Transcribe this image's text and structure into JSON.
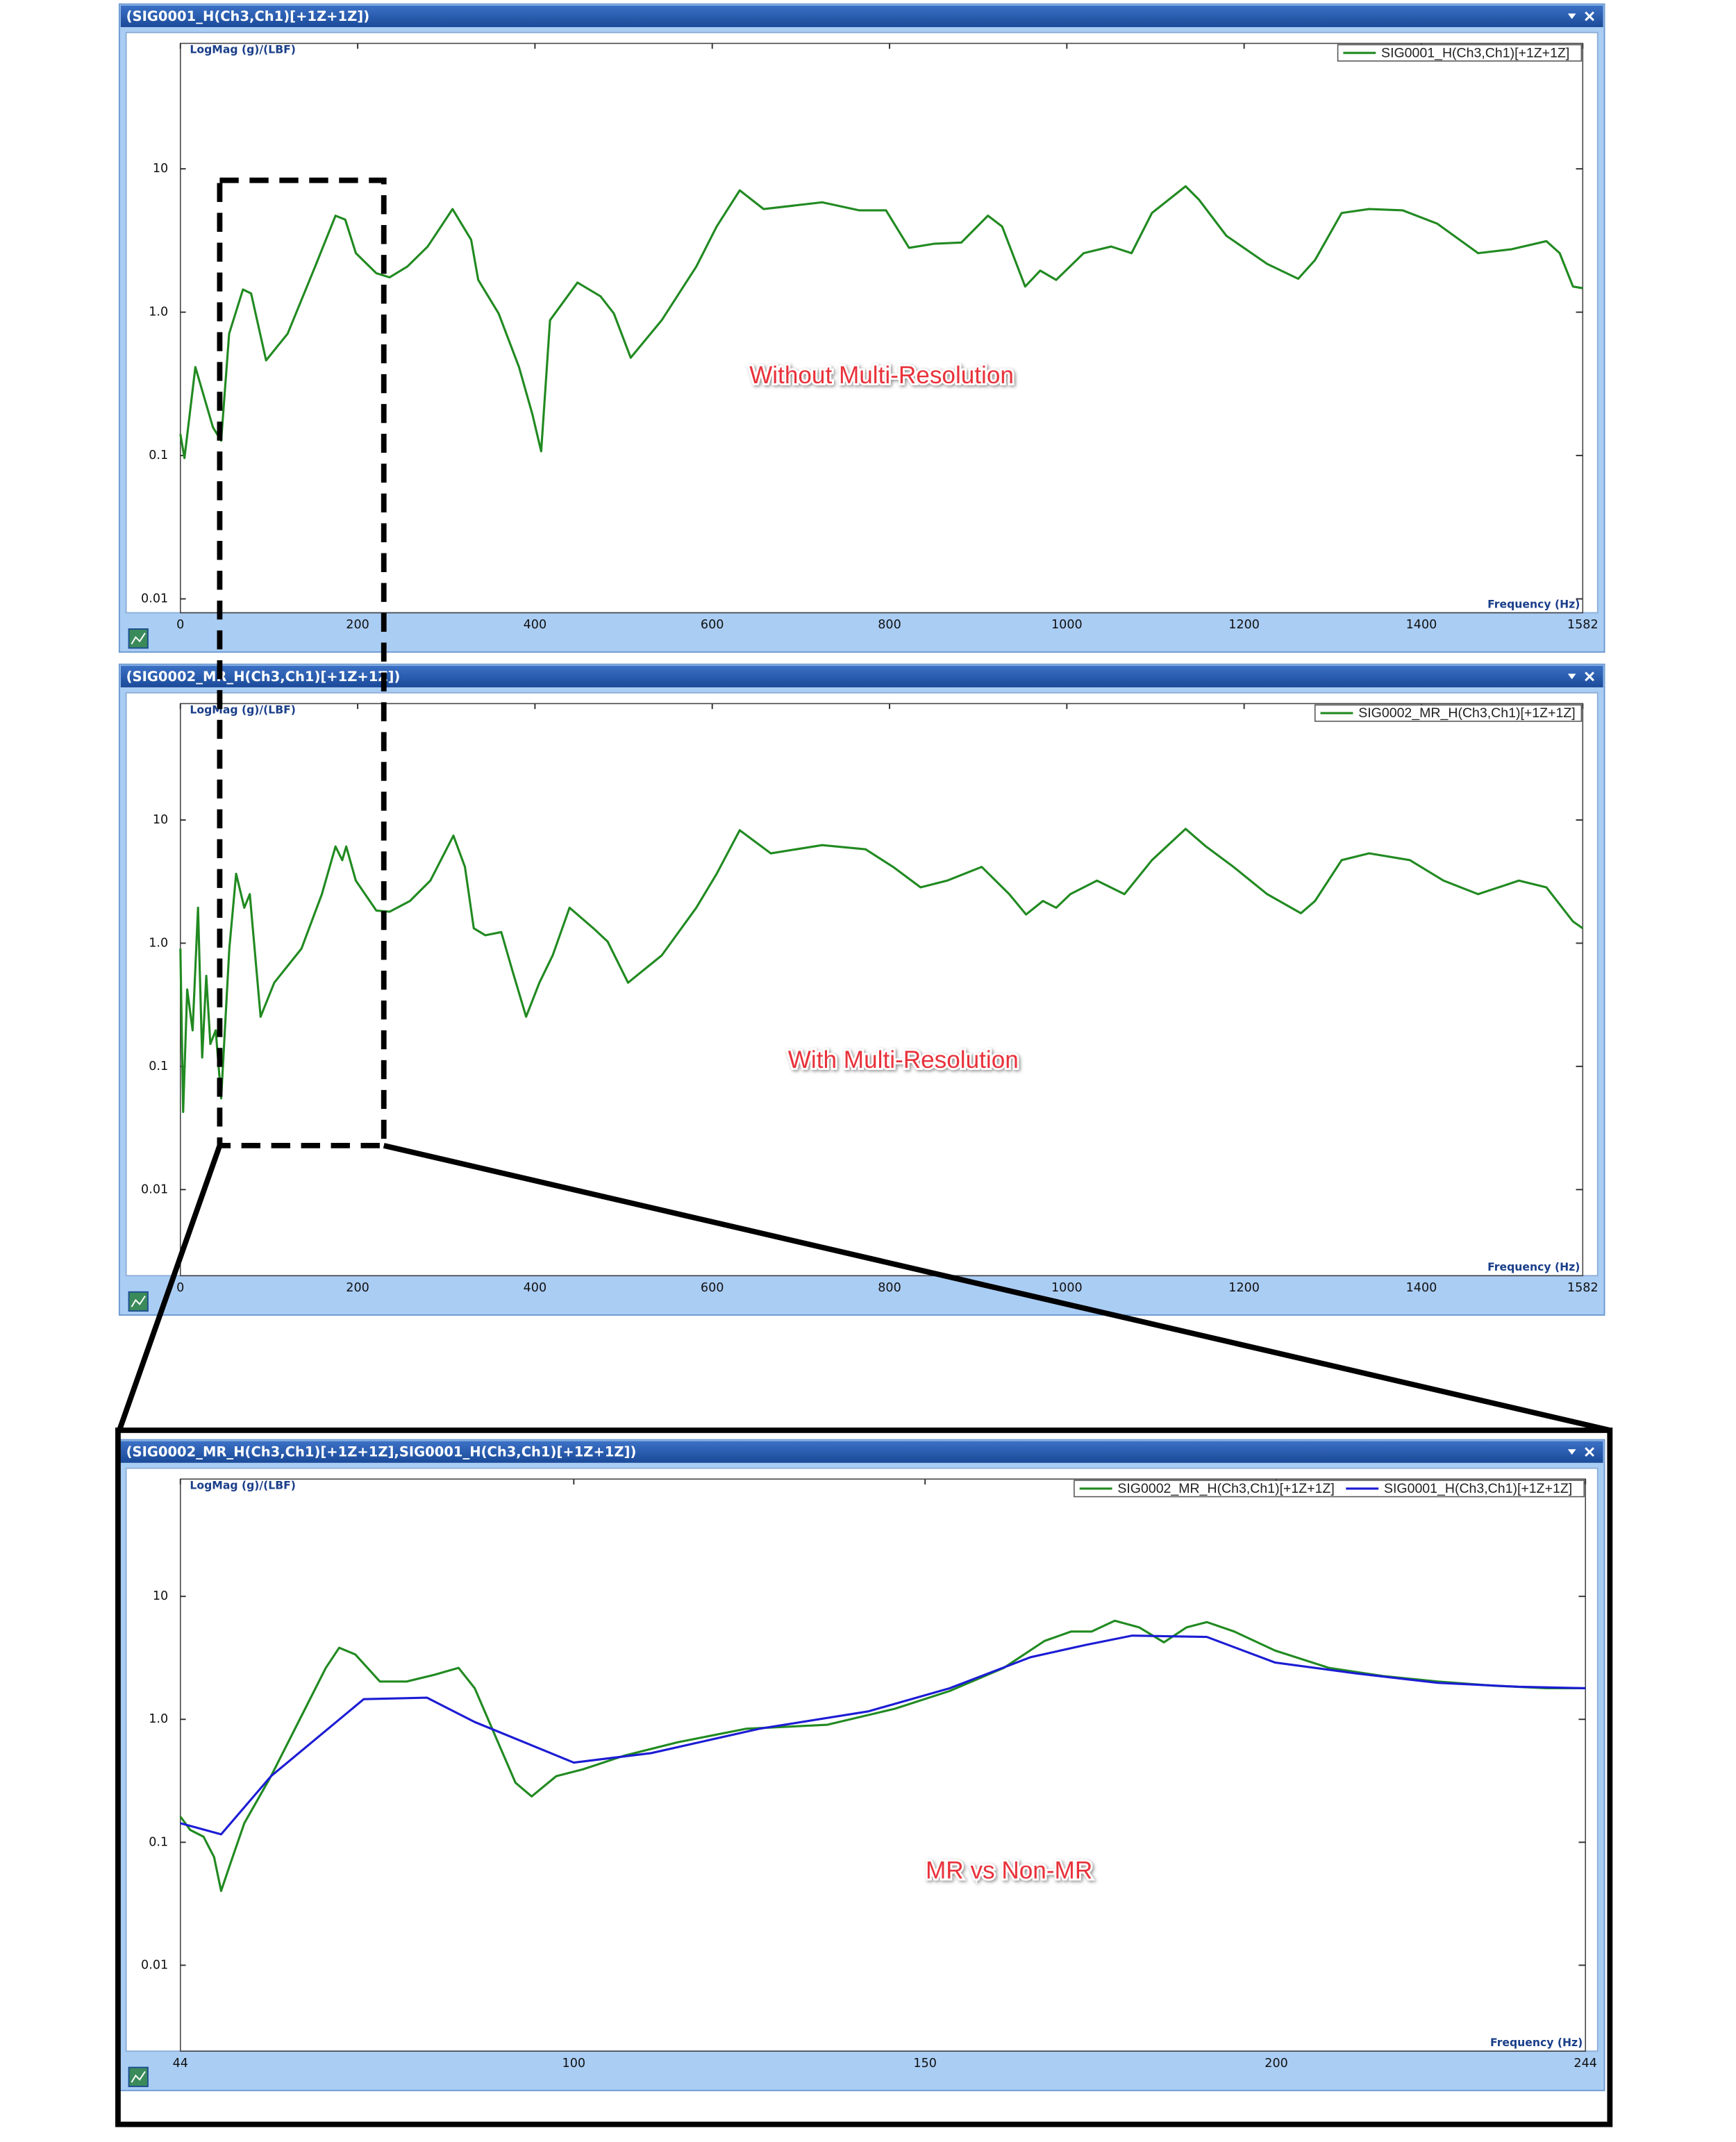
{
  "chart_data": [
    {
      "type": "line",
      "title": "(SIG0001_H(Ch3,Ch1)[+1Z+1Z])",
      "y_label": "LogMag (g)/(LBF)",
      "x_label": "Frequency (Hz)",
      "annotation": "Without Multi-Resolution",
      "y_scale": "log",
      "legend": "upper right",
      "grid": false,
      "xlim": [
        0,
        1582
      ],
      "xticks": [
        0,
        200,
        400,
        600,
        800,
        1000,
        1200,
        1400,
        1582
      ],
      "ylim": [
        0.008,
        75
      ],
      "yticks": [
        0.01,
        0.1,
        {
          "value": 1,
          "label": "1.0"
        },
        10
      ],
      "series": [
        {
          "name": "SIG0001_H(Ch3,Ch1)[+1Z+1Z]",
          "color": "#218a21",
          "x": [
            0,
            4.6,
            16.9,
            36.8,
            46,
            55,
            70.6,
            79.8,
            96.7,
            121,
            152,
            175,
            186,
            198,
            221,
            236,
            256,
            279,
            307,
            328,
            336,
            359,
            382,
            397,
            407,
            417,
            448,
            474,
            489,
            508,
            543,
            582,
            605,
            631,
            658,
            724,
            766,
            796,
            822,
            850,
            881,
            911,
            927,
            953,
            970,
            988,
            1019,
            1050,
            1073,
            1096,
            1134,
            1149,
            1180,
            1226,
            1261,
            1280,
            1310,
            1341,
            1379,
            1418,
            1464,
            1502,
            1541,
            1556,
            1571,
            1582
          ],
          "values": [
            0.141,
            0.096,
            0.414,
            0.157,
            0.127,
            0.708,
            1.44,
            1.35,
            0.461,
            0.708,
            2.08,
            4.71,
            4.42,
            2.58,
            1.87,
            1.75,
            2.08,
            2.87,
            5.24,
            3.2,
            1.68,
            0.98,
            0.414,
            0.195,
            0.107,
            0.879,
            1.61,
            1.29,
            0.98,
            0.481,
            0.879,
            2.08,
            3.96,
            7.08,
            5.24,
            5.84,
            5.13,
            5.13,
            2.81,
            3.0,
            3.06,
            4.71,
            3.96,
            1.51,
            1.95,
            1.68,
            2.58,
            2.87,
            2.58,
            4.92,
            7.56,
            6.1,
            3.41,
            2.17,
            1.71,
            2.31,
            4.92,
            5.24,
            5.13,
            4.14,
            2.58,
            2.75,
            3.13,
            2.58,
            1.51,
            1.47
          ]
        }
      ]
    },
    {
      "type": "line",
      "title": "(SIG0002_MR_H(Ch3,Ch1)[+1Z+1Z])",
      "y_label": "LogMag (g)/(LBF)",
      "x_label": "Frequency (Hz)",
      "annotation": "With Multi-Resolution",
      "y_scale": "log",
      "legend": "upper right",
      "grid": false,
      "xlim": [
        0,
        1582
      ],
      "xticks": [
        0,
        200,
        400,
        600,
        800,
        1000,
        1200,
        1400,
        1582
      ],
      "ylim": [
        0.002,
        88
      ],
      "yticks": [
        0.01,
        0.1,
        {
          "value": 1,
          "label": "1.0"
        },
        10
      ],
      "series": [
        {
          "name": "SIG0002_MR_H(Ch3,Ch1)[+1Z+1Z]",
          "color": "#218a21",
          "x": [
            0,
            3.1,
            7.7,
            13.8,
            19.9,
            24.6,
            29.2,
            33.8,
            39.9,
            46,
            55.2,
            62.9,
            72.1,
            78.3,
            90.5,
            105.9,
            136.6,
            159.6,
            175,
            182.6,
            187.1,
            197.9,
            221,
            236,
            259,
            282,
            308,
            321,
            331,
            344,
            362,
            374,
            390,
            405,
            420,
            439,
            466,
            482,
            505,
            543,
            582,
            605,
            631,
            666,
            724,
            773,
            804,
            835,
            865,
            904,
            935,
            954,
            973,
            988,
            1004,
            1034,
            1065,
            1096,
            1134,
            1157,
            1188,
            1226,
            1264,
            1280,
            1310,
            1341,
            1387,
            1425,
            1464,
            1510,
            1541,
            1571,
            1582
          ],
          "values": [
            0.903,
            0.0427,
            0.421,
            0.196,
            1.94,
            0.118,
            0.543,
            0.152,
            0.196,
            0.055,
            0.903,
            3.66,
            1.94,
            2.5,
            0.253,
            0.478,
            0.903,
            2.5,
            6.09,
            4.72,
            6.09,
            3.22,
            1.84,
            1.8,
            2.2,
            3.22,
            7.46,
            4.16,
            1.32,
            1.16,
            1.23,
            0.617,
            0.253,
            0.478,
            0.796,
            1.94,
            1.32,
            1.03,
            0.478,
            0.796,
            1.94,
            3.66,
            8.26,
            5.36,
            6.25,
            5.78,
            4.16,
            2.84,
            3.22,
            4.16,
            2.5,
            1.71,
            2.2,
            1.94,
            2.5,
            3.22,
            2.5,
            4.72,
            8.47,
            6.09,
            4.16,
            2.5,
            1.75,
            2.2,
            4.72,
            5.36,
            4.72,
            3.22,
            2.5,
            3.22,
            2.84,
            1.5,
            1.32
          ]
        }
      ]
    },
    {
      "type": "line",
      "title": "(SIG0002_MR_H(Ch3,Ch1)[+1Z+1Z],SIG0001_H(Ch3,Ch1)[+1Z+1Z])",
      "y_label": "LogMag (g)/(LBF)",
      "x_label": "Frequency (Hz)",
      "annotation": "MR vs Non-MR",
      "y_scale": "log",
      "legend": "upper right",
      "grid": false,
      "xlim": [
        44,
        244
      ],
      "xticks": [
        44,
        100,
        150,
        200,
        244
      ],
      "ylim": [
        0.002,
        90
      ],
      "yticks": [
        0.01,
        0.1,
        {
          "value": 1,
          "label": "1.0"
        },
        10
      ],
      "series": [
        {
          "name": "SIG0002_MR_H(Ch3,Ch1)[+1Z+1Z]",
          "color": "#218a21",
          "x": [
            44,
            45.4,
            47.3,
            48.8,
            49.8,
            51.1,
            53.1,
            56.9,
            60.8,
            64.7,
            66.6,
            68.9,
            72.4,
            76.2,
            80.1,
            83.6,
            85.9,
            88.8,
            91.7,
            94,
            97.5,
            101.3,
            107.1,
            114.8,
            124.5,
            136.1,
            145.7,
            153.5,
            161.2,
            167,
            170.8,
            173.7,
            177,
            180.5,
            184,
            187.2,
            190.1,
            194,
            199.8,
            207.5,
            215.2,
            223,
            230.7,
            238.4,
            244
          ],
          "values": [
            0.162,
            0.126,
            0.111,
            0.0757,
            0.0402,
            0.0667,
            0.143,
            0.345,
            0.951,
            2.62,
            3.82,
            3.37,
            2.03,
            2.03,
            2.3,
            2.62,
            1.79,
            0.738,
            0.305,
            0.236,
            0.345,
            0.392,
            0.505,
            0.651,
            0.838,
            0.904,
            1.22,
            1.7,
            2.62,
            4.34,
            5.18,
            5.18,
            6.34,
            5.59,
            4.23,
            5.59,
            6.18,
            5.18,
            3.63,
            2.62,
            2.25,
            2.03,
            1.88,
            1.79,
            1.79
          ]
        },
        {
          "name": "SIG0001_H(Ch3,Ch1)[+1Z+1Z]",
          "color": "#1c1cd4",
          "x": [
            44,
            49.8,
            56.9,
            70.1,
            79.1,
            85.9,
            100,
            111,
            126.4,
            141.9,
            153.5,
            165,
            172.8,
            179.5,
            190.1,
            199.8,
            211.4,
            223,
            234.5,
            244
          ],
          "values": [
            0.143,
            0.116,
            0.345,
            1.46,
            1.5,
            0.951,
            0.445,
            0.531,
            0.838,
            1.16,
            1.79,
            3.2,
            4.02,
            4.8,
            4.68,
            2.9,
            2.36,
            1.98,
            1.84,
            1.79
          ]
        }
      ]
    }
  ]
}
